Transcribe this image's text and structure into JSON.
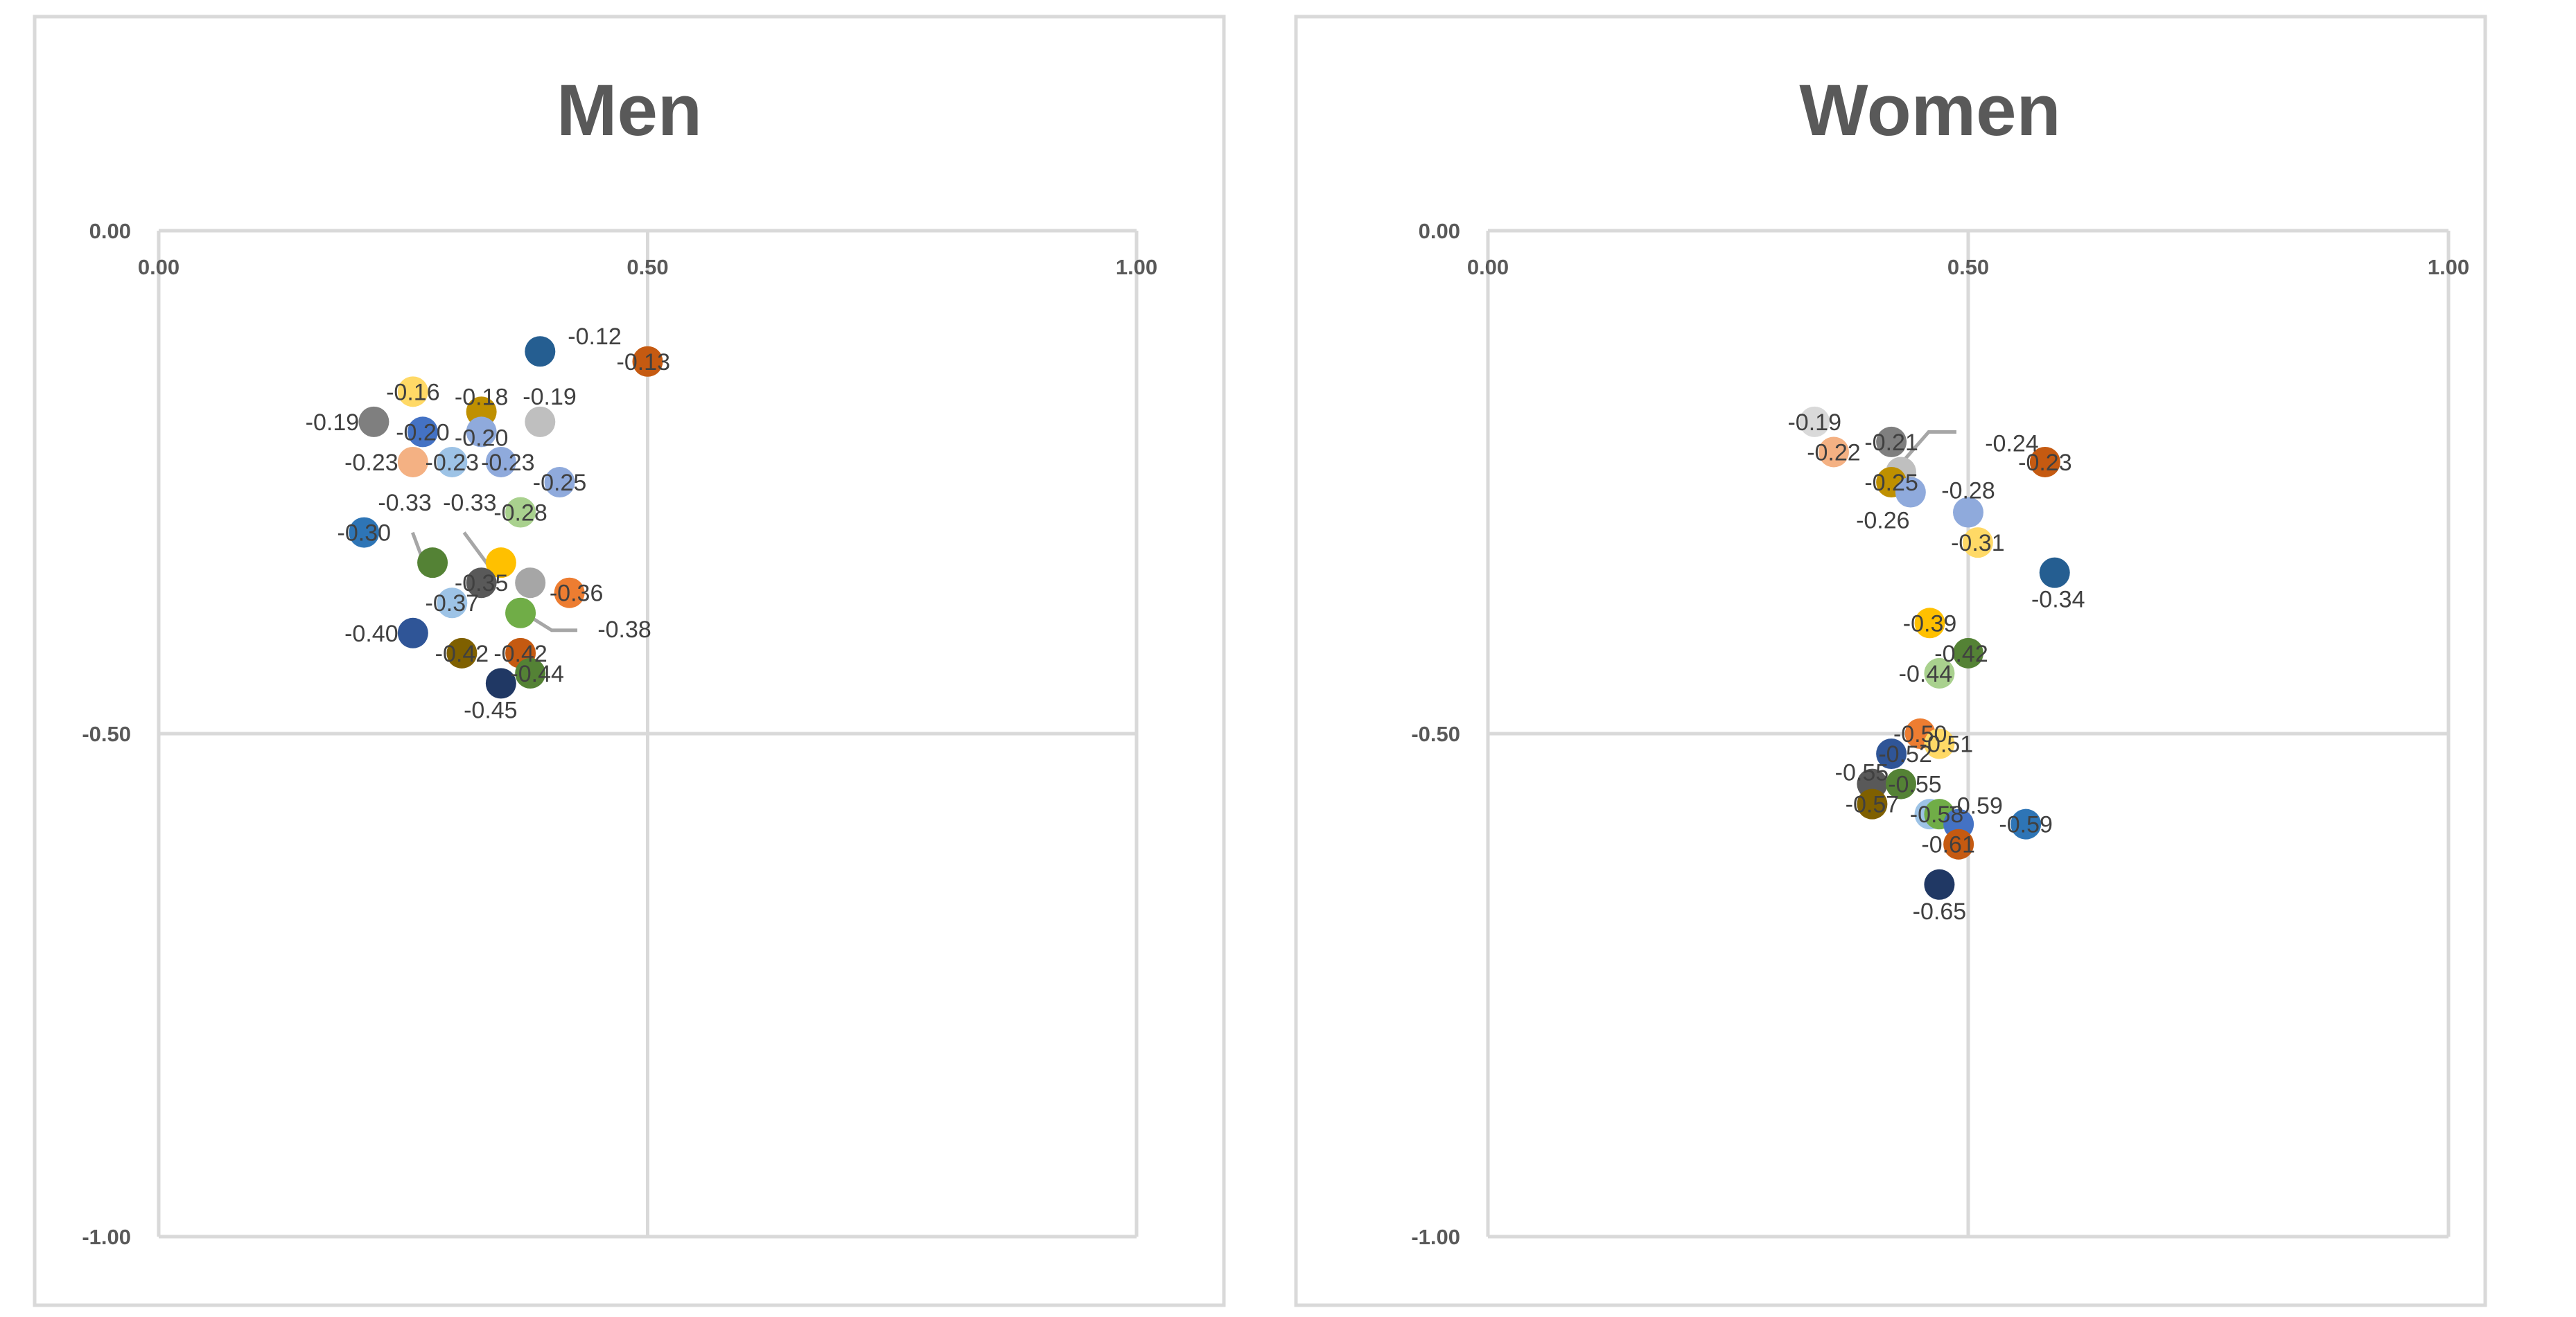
{
  "chart_data": [
    {
      "type": "scatter",
      "title": "Men",
      "xlim": [
        0,
        1
      ],
      "ylim": [
        -1,
        0
      ],
      "x_ticks": [
        "0.00",
        "0.50",
        "1.00"
      ],
      "y_ticks": [
        "0.00",
        "-0.50",
        "-1.00"
      ],
      "grid": true,
      "points": [
        {
          "x": 0.39,
          "y": -0.12,
          "label": "-0.12",
          "color": "#255e91"
        },
        {
          "x": 0.5,
          "y": -0.13,
          "label": "-0.13",
          "color": "#c55a11"
        },
        {
          "x": 0.26,
          "y": -0.16,
          "label": "-0.16",
          "color": "#ffd966"
        },
        {
          "x": 0.33,
          "y": -0.18,
          "label": "-0.18",
          "color": "#bf9000"
        },
        {
          "x": 0.39,
          "y": -0.19,
          "label": "-0.19",
          "color": "#bfbfbf"
        },
        {
          "x": 0.22,
          "y": -0.19,
          "label": "-0.19",
          "color": "#7f7f7f"
        },
        {
          "x": 0.27,
          "y": -0.2,
          "label": "-0.20",
          "color": "#4472c4"
        },
        {
          "x": 0.33,
          "y": -0.2,
          "label": "-0.20",
          "color": "#8faadc"
        },
        {
          "x": 0.26,
          "y": -0.23,
          "label": "-0.23",
          "color": "#f4b183"
        },
        {
          "x": 0.3,
          "y": -0.23,
          "label": "-0.23",
          "color": "#9dc3e6"
        },
        {
          "x": 0.35,
          "y": -0.23,
          "label": "-0.23",
          "color": "#8faadc"
        },
        {
          "x": 0.41,
          "y": -0.25,
          "label": "-0.25",
          "color": "#8faadc"
        },
        {
          "x": 0.37,
          "y": -0.28,
          "label": "-0.28",
          "color": "#a9d18e"
        },
        {
          "x": 0.21,
          "y": -0.3,
          "label": "-0.30",
          "color": "#2e75b6"
        },
        {
          "x": 0.28,
          "y": -0.33,
          "label": "-0.33",
          "color": "#548235"
        },
        {
          "x": 0.35,
          "y": -0.33,
          "label": "-0.33",
          "color": "#ffc000"
        },
        {
          "x": 0.33,
          "y": -0.35,
          "label": "-0.35",
          "color": "#595959"
        },
        {
          "x": 0.38,
          "y": -0.35,
          "label": "",
          "color": "#a6a6a6"
        },
        {
          "x": 0.42,
          "y": -0.36,
          "label": "-0.36",
          "color": "#ed7d31"
        },
        {
          "x": 0.3,
          "y": -0.37,
          "label": "-0.37",
          "color": "#9dc3e6"
        },
        {
          "x": 0.37,
          "y": -0.38,
          "label": "-0.38",
          "color": "#70ad47"
        },
        {
          "x": 0.26,
          "y": -0.4,
          "label": "-0.40",
          "color": "#2f5597"
        },
        {
          "x": 0.31,
          "y": -0.42,
          "label": "-0.42",
          "color": "#7f6000"
        },
        {
          "x": 0.37,
          "y": -0.42,
          "label": "-0.42",
          "color": "#c55a11"
        },
        {
          "x": 0.38,
          "y": -0.44,
          "label": "-0.44",
          "color": "#548235"
        },
        {
          "x": 0.35,
          "y": -0.45,
          "label": "-0.45",
          "color": "#203864"
        }
      ]
    },
    {
      "type": "scatter",
      "title": "Women",
      "xlim": [
        0,
        1
      ],
      "ylim": [
        -1,
        0
      ],
      "x_ticks": [
        "0.00",
        "0.50",
        "1.00"
      ],
      "y_ticks": [
        "0.00",
        "-0.50",
        "-1.00"
      ],
      "grid": true,
      "points": [
        {
          "x": 0.34,
          "y": -0.19,
          "label": "-0.19",
          "color": "#d9d9d9"
        },
        {
          "x": 0.36,
          "y": -0.22,
          "label": "-0.22",
          "color": "#f4b183"
        },
        {
          "x": 0.42,
          "y": -0.21,
          "label": "-0.21",
          "color": "#7f7f7f"
        },
        {
          "x": 0.43,
          "y": -0.24,
          "label": "-0.24",
          "color": "#bfbfbf"
        },
        {
          "x": 0.58,
          "y": -0.23,
          "label": "-0.23",
          "color": "#c55a11"
        },
        {
          "x": 0.42,
          "y": -0.25,
          "label": "-0.25",
          "color": "#bf9000"
        },
        {
          "x": 0.44,
          "y": -0.26,
          "label": "-0.26",
          "color": "#8faadc"
        },
        {
          "x": 0.5,
          "y": -0.28,
          "label": "-0.28",
          "color": "#8faadc"
        },
        {
          "x": 0.51,
          "y": -0.31,
          "label": "-0.31",
          "color": "#ffd966"
        },
        {
          "x": 0.59,
          "y": -0.34,
          "label": "-0.34",
          "color": "#255e91"
        },
        {
          "x": 0.46,
          "y": -0.39,
          "label": "-0.39",
          "color": "#ffc000"
        },
        {
          "x": 0.5,
          "y": -0.42,
          "label": "-0.42",
          "color": "#548235"
        },
        {
          "x": 0.47,
          "y": -0.44,
          "label": "-0.44",
          "color": "#a9d18e"
        },
        {
          "x": 0.45,
          "y": -0.5,
          "label": "-0.50",
          "color": "#ed7d31"
        },
        {
          "x": 0.47,
          "y": -0.51,
          "label": "-0.51",
          "color": "#ffd966"
        },
        {
          "x": 0.42,
          "y": -0.52,
          "label": "-0.52",
          "color": "#2f5597"
        },
        {
          "x": 0.4,
          "y": -0.55,
          "label": "-0.55",
          "color": "#595959"
        },
        {
          "x": 0.43,
          "y": -0.55,
          "label": "-0.55",
          "color": "#548235"
        },
        {
          "x": 0.4,
          "y": -0.57,
          "label": "-0.57",
          "color": "#7f6000"
        },
        {
          "x": 0.46,
          "y": -0.58,
          "label": "-0.58",
          "color": "#9dc3e6"
        },
        {
          "x": 0.47,
          "y": -0.58,
          "label": "",
          "color": "#70ad47"
        },
        {
          "x": 0.49,
          "y": -0.59,
          "label": "-0.59",
          "color": "#4472c4"
        },
        {
          "x": 0.56,
          "y": -0.59,
          "label": "-0.59",
          "color": "#2e75b6"
        },
        {
          "x": 0.49,
          "y": -0.61,
          "label": "-0.61",
          "color": "#c55a11"
        },
        {
          "x": 0.47,
          "y": -0.65,
          "label": "-0.65",
          "color": "#203864"
        }
      ]
    }
  ]
}
